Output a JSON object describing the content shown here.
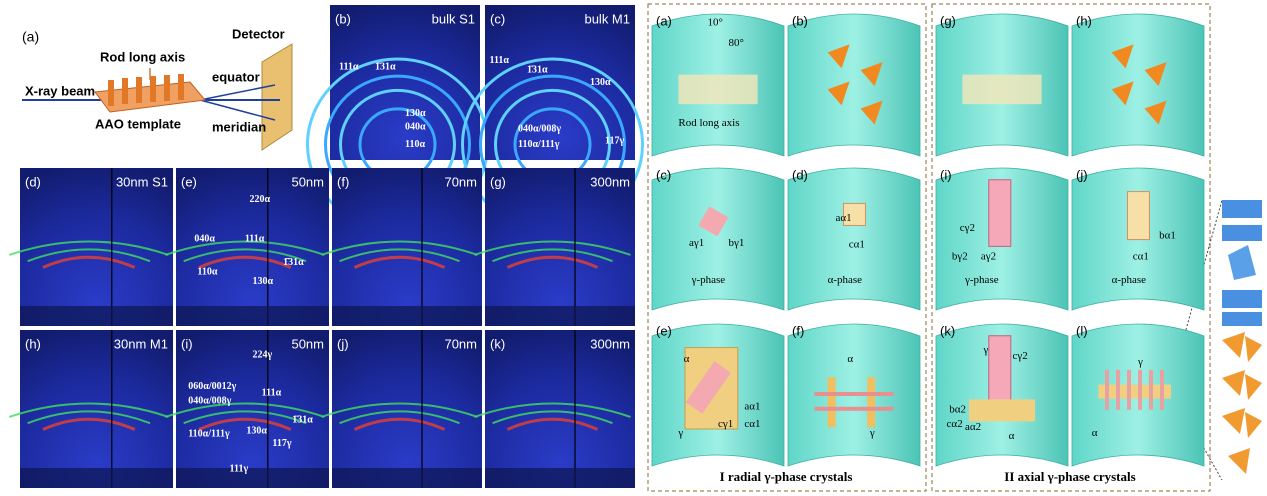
{
  "schematic": {
    "label": "(a)",
    "rod_axis": "Rod long axis",
    "detector": "Detector",
    "beam": "X-ray beam",
    "equator": "equator",
    "template": "AAO template",
    "meridian": "meridian"
  },
  "patterns": [
    {
      "label": "(b)",
      "title": "bulk S1",
      "annotations": [
        "111α",
        "1̄31α",
        "130α",
        "040α",
        "110α"
      ]
    },
    {
      "label": "(c)",
      "title": "bulk M1",
      "annotations": [
        "111α",
        "1̄31α",
        "130α",
        "040α/008γ",
        "110α/111γ",
        "117γ"
      ]
    },
    {
      "label": "(d)",
      "title": "30nm S1",
      "annotations": []
    },
    {
      "label": "(e)",
      "title": "50nm",
      "annotations": [
        "220α",
        "040α",
        "111α",
        "1̄31α",
        "110α",
        "130α"
      ]
    },
    {
      "label": "(f)",
      "title": "70nm",
      "annotations": []
    },
    {
      "label": "(g)",
      "title": "300nm",
      "annotations": []
    },
    {
      "label": "(h)",
      "title": "30nm M1",
      "annotations": []
    },
    {
      "label": "(i)",
      "title": "50nm",
      "annotations": [
        "224γ",
        "060α/0012γ",
        "040α/008γ",
        "111α",
        "1̄31α",
        "110α/111γ",
        "130α",
        "117γ",
        "111γ"
      ]
    },
    {
      "label": "(j)",
      "title": "70nm",
      "annotations": []
    },
    {
      "label": "(k)",
      "title": "300nm",
      "annotations": []
    }
  ],
  "groups": [
    {
      "caption": "I radial γ-phase crystals",
      "panels": [
        {
          "label": "(a)",
          "annotations": [
            "10°",
            "80°",
            "Rod long axis"
          ]
        },
        {
          "label": "(b)",
          "annotations": []
        },
        {
          "label": "(c)",
          "annotations": [
            "aγ1",
            "bγ1",
            "γ-phase"
          ]
        },
        {
          "label": "(d)",
          "annotations": [
            "aα1",
            "cα1",
            "α-phase"
          ]
        },
        {
          "label": "(e)",
          "annotations": [
            "α",
            "aα1",
            "cα1",
            "cγ1",
            "γ"
          ]
        },
        {
          "label": "(f)",
          "annotations": [
            "α",
            "γ"
          ]
        }
      ]
    },
    {
      "caption": "II axial γ-phase crystals",
      "panels": [
        {
          "label": "(g)",
          "annotations": []
        },
        {
          "label": "(h)",
          "annotations": []
        },
        {
          "label": "(i)",
          "annotations": [
            "cγ2",
            "bγ2",
            "aγ2",
            "γ-phase"
          ]
        },
        {
          "label": "(j)",
          "annotations": [
            "bα1",
            "cα1",
            "α-phase"
          ]
        },
        {
          "label": "(k)",
          "annotations": [
            "γ",
            "cγ2",
            "bα2",
            "cα2",
            "aα2",
            "α"
          ]
        },
        {
          "label": "(l)",
          "annotations": [
            "γ",
            "α"
          ]
        }
      ]
    }
  ]
}
